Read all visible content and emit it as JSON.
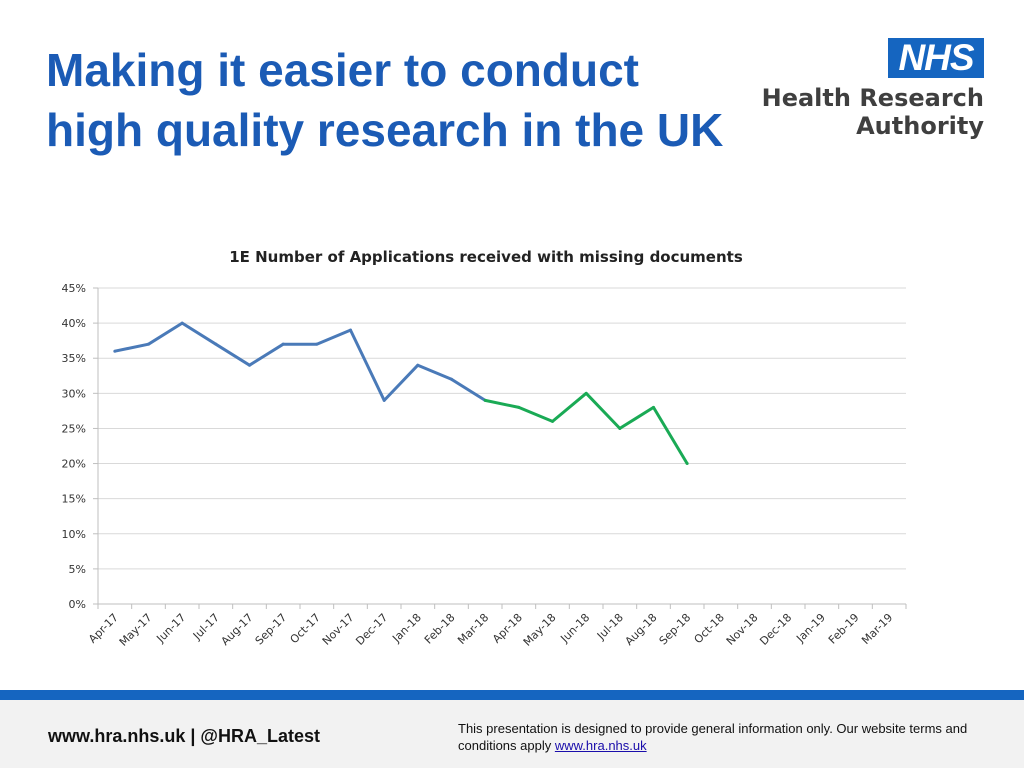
{
  "slide": {
    "title_line1": "Making it easier to conduct",
    "title_line2": "high quality research in the UK"
  },
  "logo": {
    "nhs": "NHS",
    "line1": "Health Research",
    "line2": "Authority"
  },
  "footer": {
    "contact": "www.hra.nhs.uk | @HRA_Latest",
    "disclaimer": "This presentation is designed to provide general information only. Our website terms and conditions apply",
    "link": "www.hra.nhs.uk"
  },
  "colors": {
    "title": "#1b5bb5",
    "series_blue": "#4a7ab8",
    "series_green": "#1aaa55",
    "footer_bar": "#1565c0"
  },
  "chart_data": {
    "type": "line",
    "title": "1E Number of Applications received with missing documents",
    "categories": [
      "Apr-17",
      "May-17",
      "Jun-17",
      "Jul-17",
      "Aug-17",
      "Sep-17",
      "Oct-17",
      "Nov-17",
      "Dec-17",
      "Jan-18",
      "Feb-18",
      "Mar-18",
      "Apr-18",
      "May-18",
      "Jun-18",
      "Jul-18",
      "Aug-18",
      "Sep-18",
      "Oct-18",
      "Nov-18",
      "Dec-18",
      "Jan-19",
      "Feb-19",
      "Mar-19"
    ],
    "series": [
      {
        "color": "#4a7ab8",
        "values": [
          0.36,
          0.37,
          0.4,
          0.37,
          0.34,
          0.37,
          0.37,
          0.39,
          0.29,
          0.34,
          0.32,
          0.29,
          null,
          null,
          null,
          null,
          null,
          null,
          null,
          null,
          null,
          null,
          null,
          null
        ]
      },
      {
        "color": "#1aaa55",
        "values": [
          null,
          null,
          null,
          null,
          null,
          null,
          null,
          null,
          null,
          null,
          null,
          0.29,
          0.28,
          0.26,
          0.3,
          0.25,
          0.28,
          0.2,
          null,
          null,
          null,
          null,
          null,
          null
        ]
      }
    ],
    "ylim": [
      0,
      0.45
    ],
    "yticks": [
      0,
      0.05,
      0.1,
      0.15,
      0.2,
      0.25,
      0.3,
      0.35,
      0.4,
      0.45
    ],
    "ytick_labels": [
      "0%",
      "5%",
      "10%",
      "15%",
      "20%",
      "25%",
      "30%",
      "35%",
      "40%",
      "45%"
    ],
    "grid": true,
    "legend": "none"
  }
}
